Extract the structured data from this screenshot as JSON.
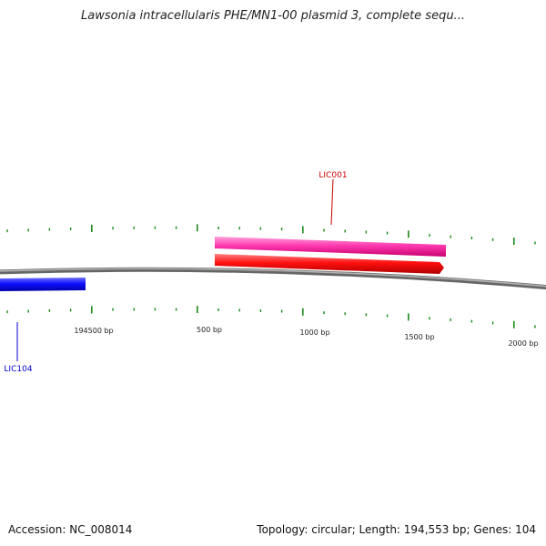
{
  "title": "Lawsonia intracellularis PHE/MN1-00 plasmid 3, complete sequ...",
  "colors": {
    "backbone": "#7a7a7a",
    "tick": "#1a8a1a",
    "forward_gene": "#ff3399",
    "forward_gene_alt": "#ff0000",
    "reverse_gene": "#0000ff",
    "label_forward": "#cc0000",
    "label_reverse": "#0000cc"
  },
  "position_labels": [
    "194500 bp",
    "500 bp",
    "1000 bp",
    "1500 bp",
    "2000 bp"
  ],
  "gene_labels": {
    "forward": "LIC001",
    "reverse": "LIC104"
  },
  "footer": {
    "accession": "Accession: NC_008014",
    "summary": "Topology: circular; Length: 194,553 bp; Genes: 104"
  }
}
